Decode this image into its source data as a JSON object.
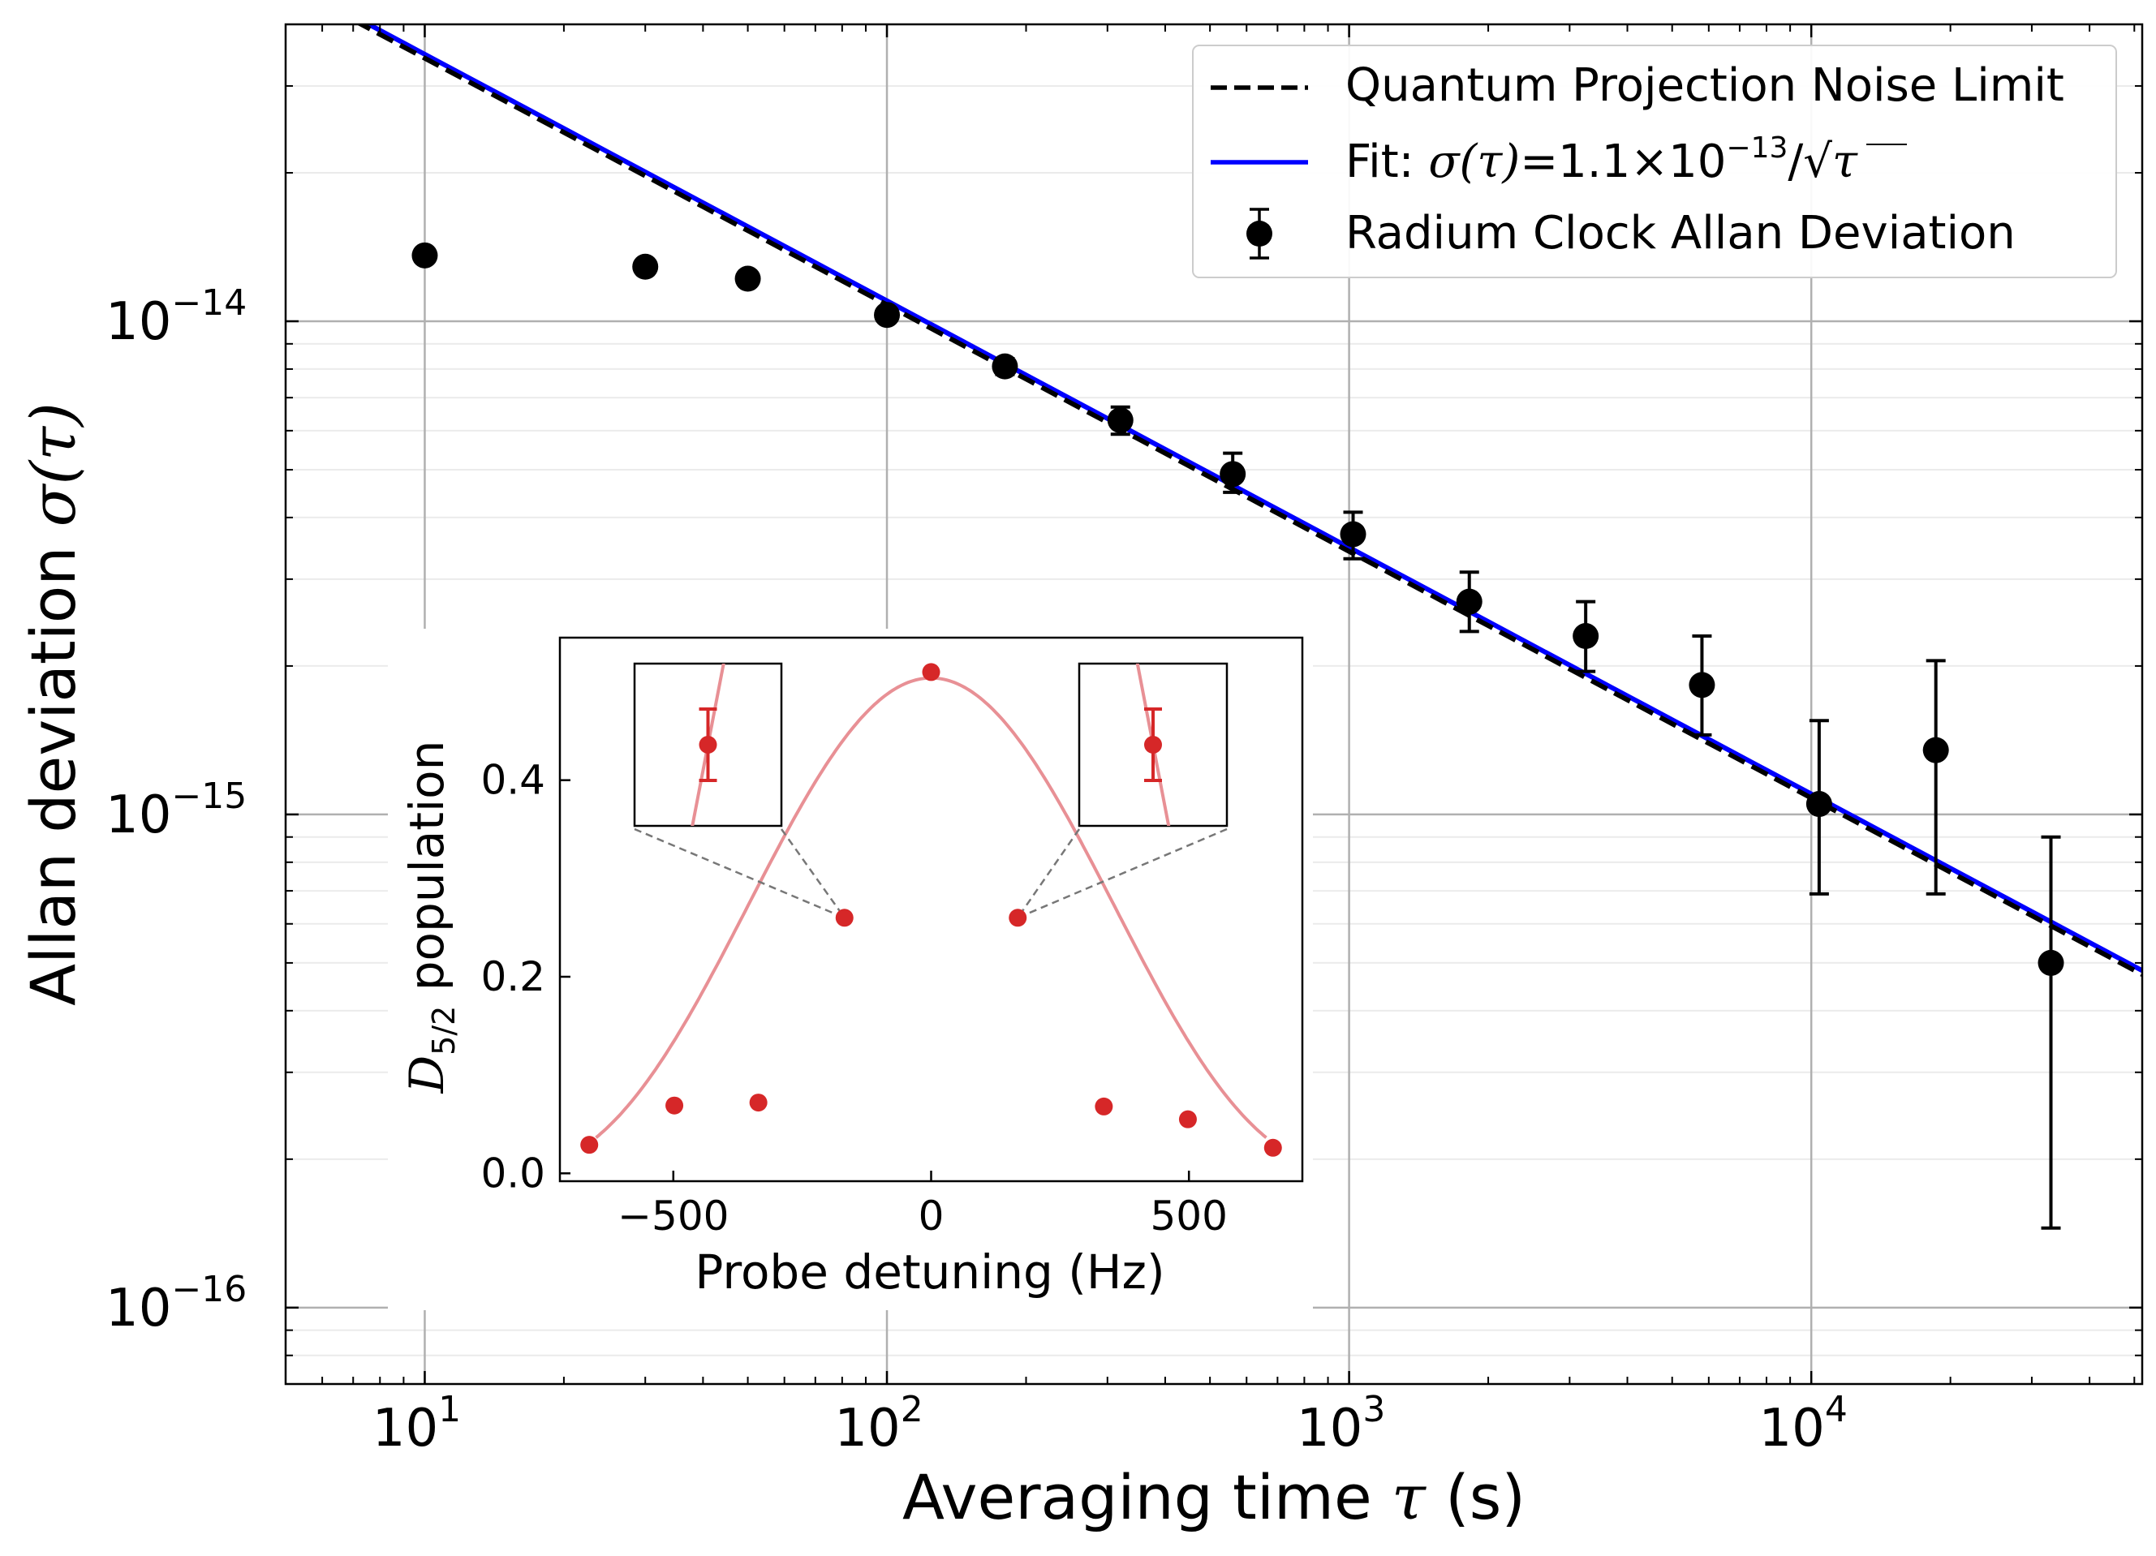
{
  "chart_data": [
    {
      "type": "scatter",
      "role": "main",
      "xscale": "log",
      "yscale": "log",
      "xlim": [
        5,
        52000
      ],
      "ylim": [
        7e-17,
        4e-14
      ],
      "grid": true,
      "legend_position": "top-right",
      "xlabel": {
        "main": "Averaging time ",
        "sym": "τ",
        "unit": " (s)"
      },
      "ylabel": {
        "main": "Allan deviation ",
        "sym": "σ",
        "arg": "(τ)"
      },
      "xticks": [
        {
          "value": 10,
          "base": "10",
          "exp": "1"
        },
        {
          "value": 100,
          "base": "10",
          "exp": "2"
        },
        {
          "value": 1000,
          "base": "10",
          "exp": "3"
        },
        {
          "value": 10000,
          "base": "10",
          "exp": "4"
        }
      ],
      "yticks": [
        {
          "value": 1e-14,
          "base": "10",
          "exp": "−14"
        },
        {
          "value": 1e-15,
          "base": "10",
          "exp": "−15"
        },
        {
          "value": 1e-16,
          "base": "10",
          "exp": "−16"
        }
      ],
      "series": [
        {
          "name": "Quantum Projection Noise Limit",
          "kind": "dashed-line",
          "color": "#000000",
          "coefficient": 1.08e-13,
          "x_range": [
            5,
            52000
          ]
        },
        {
          "name": "Fit",
          "kind": "line",
          "color": "#0000ff",
          "coefficient": 1.1e-13,
          "x_range": [
            5,
            52000
          ],
          "legend_text": {
            "prefix": "Fit: ",
            "sym": "σ(τ)",
            "eq": "=1.1×10",
            "exp": "−13",
            "div": "/√",
            "tail": "τ"
          }
        },
        {
          "name": "Radium Clock Allan Deviation",
          "kind": "errorbar",
          "color": "#000000",
          "points": [
            {
              "x": 10,
              "y": 1.36e-14,
              "lo": 1.36e-14,
              "hi": 1.36e-14
            },
            {
              "x": 30,
              "y": 1.29e-14,
              "lo": 1.29e-14,
              "hi": 1.29e-14
            },
            {
              "x": 50,
              "y": 1.22e-14,
              "lo": 1.22e-14,
              "hi": 1.22e-14
            },
            {
              "x": 100,
              "y": 1.03e-14,
              "lo": 1e-14,
              "hi": 1.06e-14
            },
            {
              "x": 180,
              "y": 8.1e-15,
              "lo": 7.8e-15,
              "hi": 8.4e-15
            },
            {
              "x": 320,
              "y": 6.3e-15,
              "lo": 5.9e-15,
              "hi": 6.7e-15
            },
            {
              "x": 560,
              "y": 4.9e-15,
              "lo": 4.5e-15,
              "hi": 5.4e-15
            },
            {
              "x": 1020,
              "y": 3.7e-15,
              "lo": 3.3e-15,
              "hi": 4.1e-15
            },
            {
              "x": 1820,
              "y": 2.7e-15,
              "lo": 2.35e-15,
              "hi": 3.1e-15
            },
            {
              "x": 3250,
              "y": 2.3e-15,
              "lo": 1.95e-15,
              "hi": 2.7e-15
            },
            {
              "x": 5800,
              "y": 1.83e-15,
              "lo": 1.45e-15,
              "hi": 2.3e-15
            },
            {
              "x": 10400,
              "y": 1.05e-15,
              "lo": 6.9e-16,
              "hi": 1.55e-15
            },
            {
              "x": 18600,
              "y": 1.35e-15,
              "lo": 6.9e-16,
              "hi": 2.05e-15
            },
            {
              "x": 33000,
              "y": 5e-16,
              "lo": 1.45e-16,
              "hi": 9e-16
            }
          ]
        }
      ]
    },
    {
      "type": "scatter",
      "role": "inset",
      "xlim": [
        -720,
        720
      ],
      "ylim": [
        -0.008,
        0.545
      ],
      "xlabel": "Probe detuning (Hz)",
      "ylabel": {
        "main": "D",
        "sub": "5/2",
        "rest": " population"
      },
      "xticks": [
        {
          "value": -500,
          "label": "−500"
        },
        {
          "value": 0,
          "label": "0"
        },
        {
          "value": 500,
          "label": "500"
        }
      ],
      "yticks": [
        {
          "value": 0.0,
          "label": "0.0"
        },
        {
          "value": 0.2,
          "label": "0.2"
        },
        {
          "value": 0.4,
          "label": "0.4"
        }
      ],
      "curve": {
        "color": "#e89095",
        "peak": 0.5,
        "rabi_width_hz": 600,
        "curve_x_range": [
          -650,
          650
        ]
      },
      "points_color": "#d62728",
      "points": [
        {
          "x": -663,
          "y": 0.029
        },
        {
          "x": -498,
          "y": 0.069
        },
        {
          "x": -335,
          "y": 0.072
        },
        {
          "x": -168,
          "y": 0.26
        },
        {
          "x": 0,
          "y": 0.51
        },
        {
          "x": 168,
          "y": 0.26
        },
        {
          "x": 335,
          "y": 0.068
        },
        {
          "x": 498,
          "y": 0.055
        },
        {
          "x": 663,
          "y": 0.026
        }
      ],
      "zoom_boxes": [
        {
          "side": "left",
          "target_point_index": 3
        },
        {
          "side": "right",
          "target_point_index": 5
        }
      ]
    }
  ]
}
